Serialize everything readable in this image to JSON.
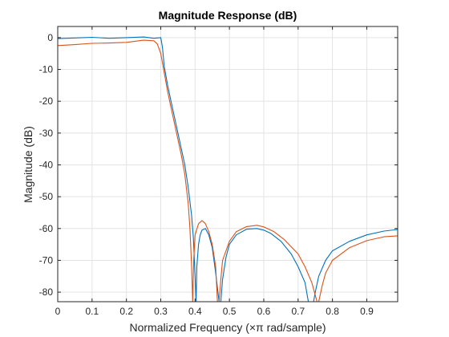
{
  "chart_data": {
    "type": "line",
    "title": "Magnitude Response (dB)",
    "xlabel": "Normalized Frequency (×π rad/sample)",
    "ylabel": "Magnitude (dB)",
    "xlim": [
      0,
      0.99
    ],
    "ylim": [
      -83,
      3.5
    ],
    "xticks": [
      0,
      0.1,
      0.2,
      0.3,
      0.4,
      0.5,
      0.6,
      0.7,
      0.8,
      0.9
    ],
    "xtick_labels": [
      "0",
      "0.1",
      "0.2",
      "0.3",
      "0.4",
      "0.5",
      "0.6",
      "0.7",
      "0.8",
      "0.9"
    ],
    "yticks": [
      0,
      -10,
      -20,
      -30,
      -40,
      -50,
      -60,
      -70,
      -80
    ],
    "ytick_labels": [
      "0",
      "-10",
      "-20",
      "-30",
      "-40",
      "-50",
      "-60",
      "-70",
      "-80"
    ],
    "grid": true,
    "series": [
      {
        "color": "#0072BD",
        "x": [
          0,
          0.05,
          0.1,
          0.15,
          0.2,
          0.25,
          0.28,
          0.3,
          0.305,
          0.31,
          0.32,
          0.33,
          0.34,
          0.35,
          0.36,
          0.37,
          0.38,
          0.39,
          0.395,
          0.4,
          0.403,
          0.405,
          0.41,
          0.415,
          0.42,
          0.43,
          0.44,
          0.45,
          0.46,
          0.47,
          0.475,
          0.48,
          0.49,
          0.5,
          0.52,
          0.55,
          0.58,
          0.6,
          0.62,
          0.65,
          0.68,
          0.7,
          0.72,
          0.73,
          0.74,
          0.745,
          0.75,
          0.76,
          0.78,
          0.8,
          0.85,
          0.9,
          0.95,
          0.99
        ],
        "y": [
          -0.3,
          -0.1,
          0.1,
          -0.2,
          0.0,
          0.2,
          -0.2,
          0.0,
          -3,
          -9,
          -15,
          -20,
          -25,
          -30,
          -35,
          -40,
          -47,
          -56,
          -63,
          -75,
          -83,
          -72,
          -65,
          -62,
          -60.5,
          -60,
          -62,
          -66,
          -74,
          -83,
          -83,
          -76,
          -69,
          -65,
          -62,
          -60.2,
          -60,
          -60.5,
          -61.5,
          -64,
          -68,
          -72,
          -77,
          -83,
          -83,
          -83,
          -80,
          -75,
          -70,
          -67,
          -64,
          -62,
          -60.8,
          -60.3
        ]
      },
      {
        "color": "#D95319",
        "x": [
          0,
          0.05,
          0.1,
          0.15,
          0.2,
          0.25,
          0.28,
          0.29,
          0.3,
          0.31,
          0.32,
          0.33,
          0.34,
          0.35,
          0.36,
          0.37,
          0.38,
          0.385,
          0.39,
          0.393,
          0.396,
          0.4,
          0.41,
          0.42,
          0.43,
          0.44,
          0.45,
          0.46,
          0.465,
          0.47,
          0.475,
          0.48,
          0.5,
          0.52,
          0.55,
          0.58,
          0.6,
          0.63,
          0.66,
          0.7,
          0.72,
          0.74,
          0.755,
          0.76,
          0.77,
          0.78,
          0.8,
          0.85,
          0.9,
          0.95,
          0.99
        ],
        "y": [
          -2.5,
          -2.2,
          -1.8,
          -1.7,
          -1.5,
          -0.8,
          -1.0,
          -2.0,
          -5,
          -11,
          -17,
          -22,
          -27,
          -32,
          -37,
          -43,
          -52,
          -60,
          -72,
          -83,
          -70,
          -62,
          -58.5,
          -57.5,
          -58.5,
          -61,
          -65,
          -72,
          -83,
          -83,
          -76,
          -70,
          -64,
          -61,
          -59.4,
          -59,
          -59.5,
          -61,
          -63.5,
          -68,
          -72,
          -77,
          -83,
          -83,
          -78,
          -74,
          -70,
          -66,
          -63.8,
          -62.6,
          -62.3
        ]
      }
    ]
  }
}
